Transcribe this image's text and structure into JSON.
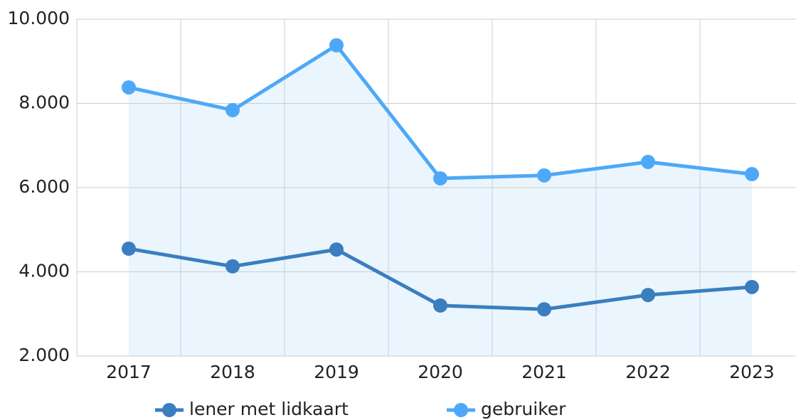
{
  "chart_data": {
    "type": "line",
    "categories": [
      "2017",
      "2018",
      "2019",
      "2020",
      "2021",
      "2022",
      "2023"
    ],
    "series": [
      {
        "name": "lener met lidkaart",
        "color": "#3a7ebf",
        "fill": "#d9e8f5",
        "values": [
          4550,
          4130,
          4530,
          3200,
          3110,
          3450,
          3640
        ]
      },
      {
        "name": "gebruiker",
        "color": "#4da9f7",
        "fill": "#eaf5fd",
        "values": [
          8380,
          7840,
          9380,
          6220,
          6290,
          6610,
          6320
        ]
      }
    ],
    "ylim": [
      2000,
      10000
    ],
    "yticks": [
      {
        "value": 2000,
        "label": "2.000"
      },
      {
        "value": 4000,
        "label": "4.000"
      },
      {
        "value": 6000,
        "label": "6.000"
      },
      {
        "value": 8000,
        "label": "8.000"
      },
      {
        "value": 10000,
        "label": "10.000"
      }
    ],
    "grid": true,
    "legend": "bottom"
  }
}
